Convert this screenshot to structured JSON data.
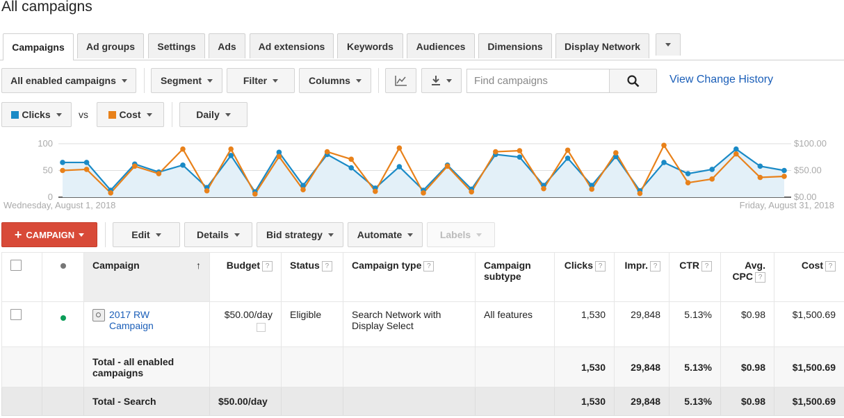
{
  "page": {
    "title": "All campaigns"
  },
  "tabs": [
    {
      "label": "Campaigns"
    },
    {
      "label": "Ad groups"
    },
    {
      "label": "Settings"
    },
    {
      "label": "Ads"
    },
    {
      "label": "Ad extensions"
    },
    {
      "label": "Keywords"
    },
    {
      "label": "Audiences"
    },
    {
      "label": "Dimensions"
    },
    {
      "label": "Display Network"
    }
  ],
  "toolbar": {
    "filter_scope": "All enabled campaigns",
    "segment": "Segment",
    "filter": "Filter",
    "columns": "Columns",
    "search_placeholder": "Find campaigns",
    "view_history": "View Change History"
  },
  "metrics": {
    "metric1": "Clicks",
    "metric1_color": "#1a8ac6",
    "vs": "vs",
    "metric2": "Cost",
    "metric2_color": "#e8811a",
    "period": "Daily"
  },
  "chart_data": {
    "type": "line",
    "x_start_label": "Wednesday, August 1, 2018",
    "x_end_label": "Friday, August 31, 2018",
    "left_axis": {
      "ticks": [
        "100",
        "50",
        "0"
      ],
      "range": [
        0,
        100
      ]
    },
    "right_axis": {
      "ticks": [
        "$100.00",
        "$50.00",
        "$0.00"
      ],
      "range": [
        0,
        100
      ]
    },
    "series": [
      {
        "name": "Clicks",
        "color": "#1a8ac6",
        "area": true,
        "values": [
          65,
          65,
          13,
          62,
          47,
          60,
          18,
          78,
          10,
          84,
          22,
          80,
          55,
          17,
          57,
          13,
          60,
          15,
          80,
          75,
          22,
          73,
          22,
          76,
          12,
          65,
          44,
          52,
          90,
          58,
          50
        ]
      },
      {
        "name": "Cost",
        "color": "#e8811a",
        "area": false,
        "values": [
          50,
          52,
          8,
          58,
          44,
          90,
          12,
          90,
          6,
          76,
          14,
          85,
          71,
          11,
          92,
          8,
          58,
          10,
          85,
          87,
          16,
          88,
          15,
          83,
          7,
          97,
          27,
          34,
          81,
          37,
          39
        ]
      }
    ]
  },
  "actions": {
    "campaign": "CAMPAIGN",
    "edit": "Edit",
    "details": "Details",
    "bid_strategy": "Bid strategy",
    "automate": "Automate",
    "labels": "Labels"
  },
  "table": {
    "headers": {
      "campaign": "Campaign",
      "budget": "Budget",
      "status": "Status",
      "campaign_type": "Campaign type",
      "subtype_line1": "Campaign",
      "subtype_line2": "subtype",
      "clicks": "Clicks",
      "impr": "Impr.",
      "ctr": "CTR",
      "avg_cpc_line1": "Avg.",
      "avg_cpc_line2": "CPC",
      "cost": "Cost",
      "help": "?"
    },
    "row": {
      "campaign_line1": "2017 RW",
      "campaign_line2": "Campaign",
      "budget": "$50.00/day",
      "status": "Eligible",
      "type_line1": "Search Network with",
      "type_line2": "Display Select",
      "subtype": "All features",
      "clicks": "1,530",
      "impr": "29,848",
      "ctr": "5.13%",
      "avg_cpc": "$0.98",
      "cost": "$1,500.69"
    },
    "total_enabled": {
      "label_line1": "Total - all enabled",
      "label_line2": "campaigns",
      "clicks": "1,530",
      "impr": "29,848",
      "ctr": "5.13%",
      "avg_cpc": "$0.98",
      "cost": "$1,500.69"
    },
    "total_search": {
      "label": "Total - Search",
      "budget": "$50.00/day",
      "clicks": "1,530",
      "impr": "29,848",
      "ctr": "5.13%",
      "avg_cpc": "$0.98",
      "cost": "$1,500.69"
    }
  }
}
